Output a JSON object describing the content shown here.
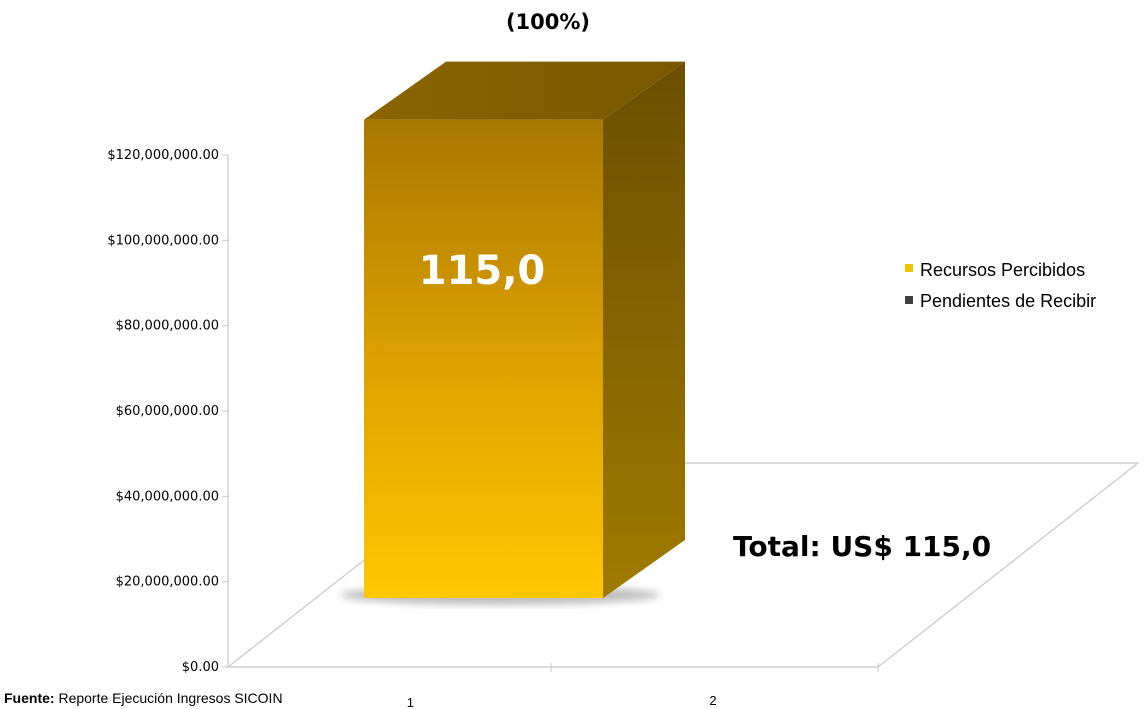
{
  "chart_data": {
    "type": "bar",
    "categories": [
      "1",
      "2"
    ],
    "series": [
      {
        "name": "Recursos Percibidos",
        "values": [
          115000000,
          null
        ],
        "color": "#f5b800"
      },
      {
        "name": "Pendientes de Recibir",
        "values": [
          0,
          null
        ],
        "color": "#404040"
      }
    ],
    "ylim": [
      0,
      120000000
    ],
    "yticks": [
      0,
      20000000,
      40000000,
      60000000,
      80000000,
      100000000,
      120000000
    ],
    "ytick_labels": [
      "$0.00",
      "$20,000,000.00",
      "$40,000,000.00",
      "$60,000,000.00",
      "$80,000,000.00",
      "$100,000,000.00",
      "$120,000,000.00"
    ],
    "bar_label": "115,0",
    "bar_percent": "(100%)",
    "total_annotation": "Total: US$ 115,0",
    "legend_position": "right",
    "three_d": true
  },
  "source": {
    "prefix": "Fuente:",
    "text": " Reporte Ejecución Ingresos SICOIN"
  }
}
